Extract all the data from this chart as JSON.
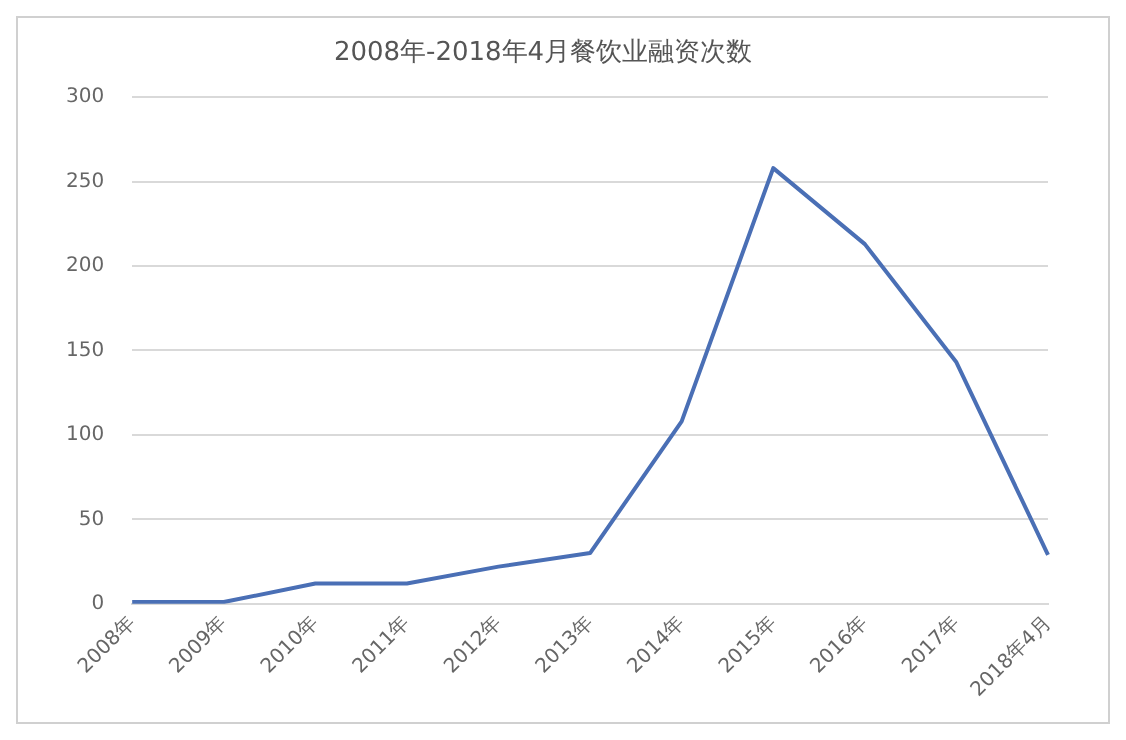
{
  "chart_data": {
    "type": "line",
    "title": "2008年-2018年4月餐饮业融资次数",
    "categories": [
      "2008年",
      "2009年",
      "2010年",
      "2011年",
      "2012年",
      "2013年",
      "2014年",
      "2015年",
      "2016年",
      "2017年",
      "2018年4月"
    ],
    "series": [
      {
        "color": "#4a6fb5",
        "values": [
          1,
          1,
          12,
          12,
          22,
          30,
          108,
          258,
          213,
          143,
          29
        ]
      }
    ],
    "ylim": [
      0,
      300
    ],
    "yticks": [
      0,
      50,
      100,
      150,
      200,
      250,
      300
    ],
    "grid": "y",
    "legend": false,
    "marker": "none",
    "line_style": "solid"
  }
}
